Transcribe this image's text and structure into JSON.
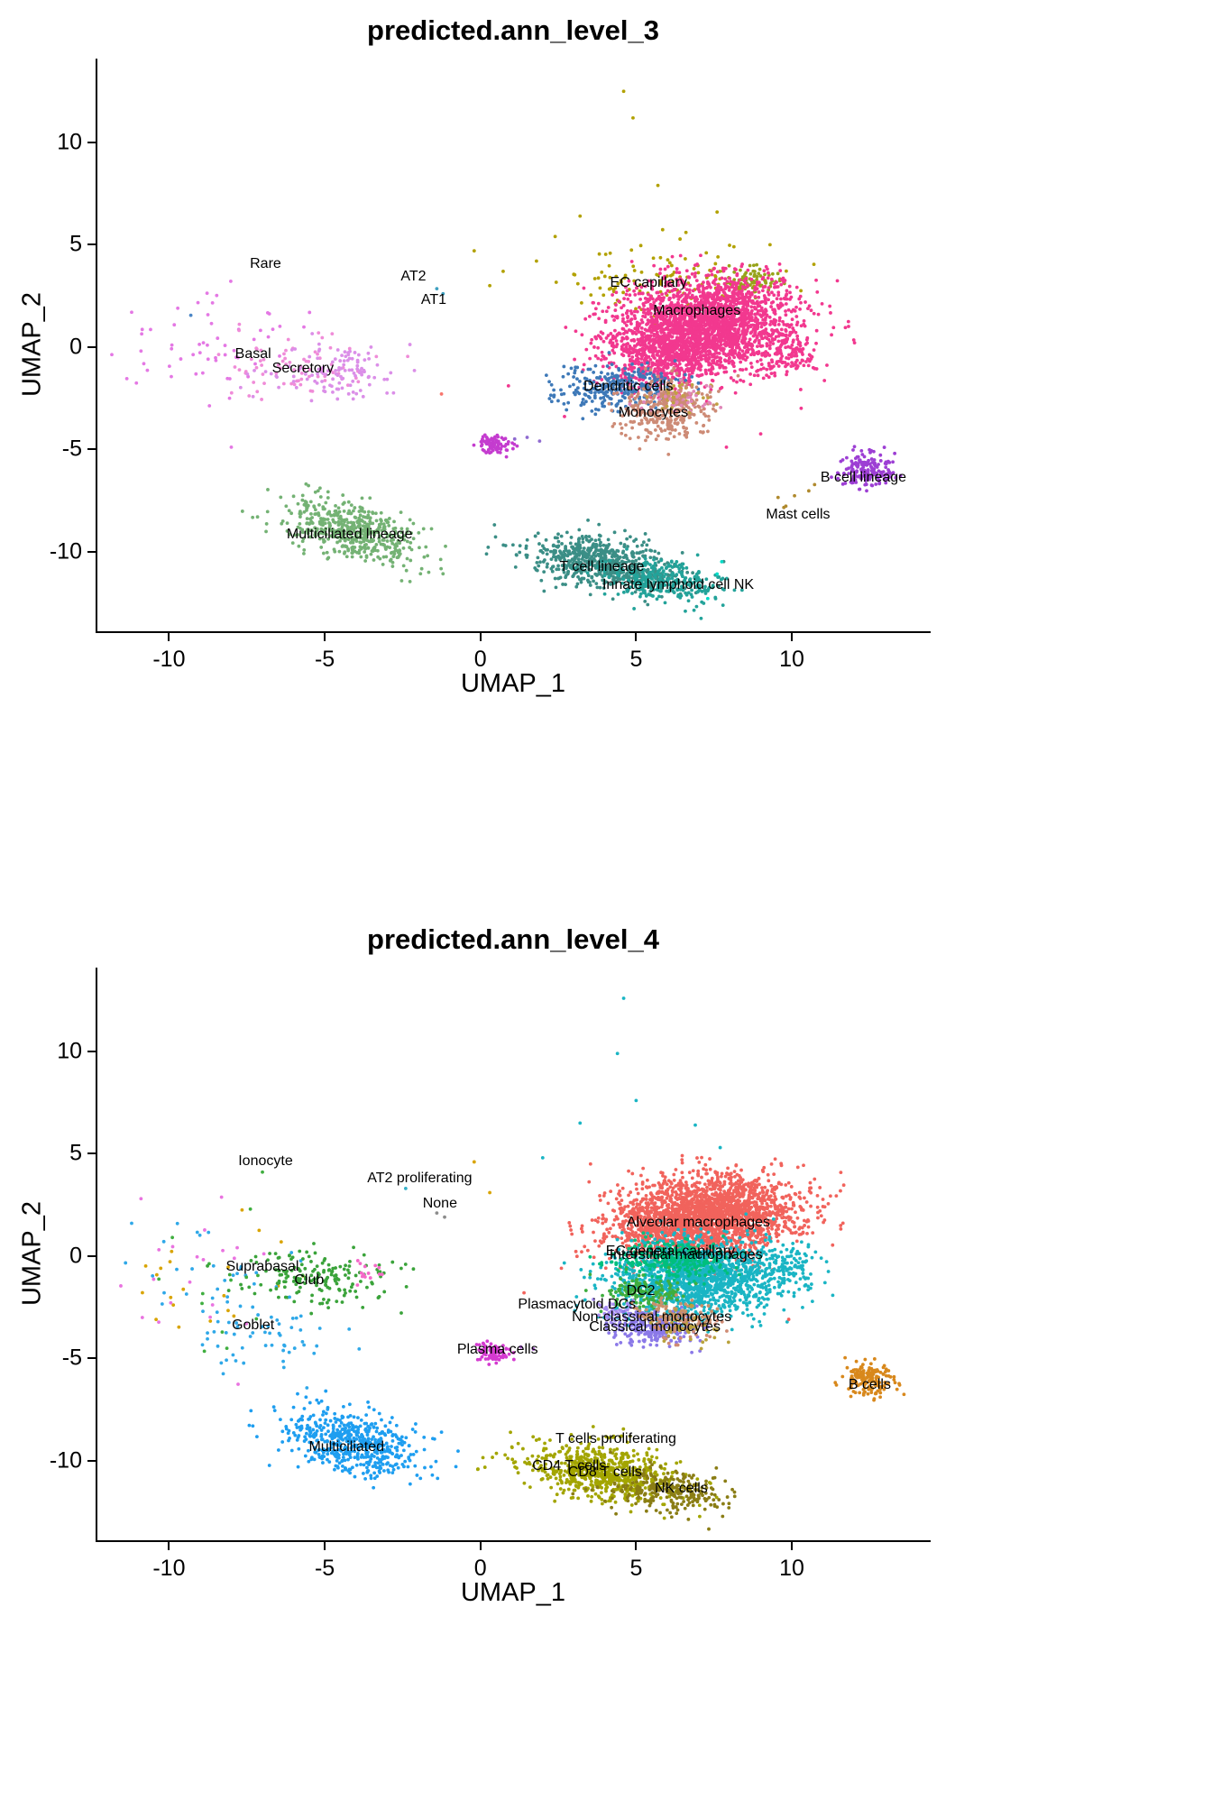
{
  "figure": {
    "background": "#ffffff",
    "text_color": "#000000",
    "axis_color": "#000000"
  },
  "chart_data": [
    {
      "type": "scatter",
      "title": "predicted.ann_level_3",
      "xlabel": "UMAP_1",
      "ylabel": "UMAP_2",
      "xlim": [
        -12.3,
        14.4
      ],
      "ylim": [
        -13.9,
        14.1
      ],
      "xticks": [
        -10,
        -5,
        0,
        5,
        10
      ],
      "yticks": [
        -10,
        -5,
        0,
        5,
        10
      ],
      "grid": false,
      "legend": "none",
      "point_radius": 1.9,
      "clusters": [
        {
          "name": "rare",
          "color": "#e478e4",
          "n": 55,
          "center": [
            -8.8,
            0.1
          ],
          "spread": [
            1.5,
            1.3
          ]
        },
        {
          "name": "rare-far-strays",
          "color": "#e478e4",
          "points": [
            [
              -11.2,
              1.7
            ],
            [
              -10.9,
              -0.2
            ],
            [
              -8.0,
              -4.9
            ]
          ]
        },
        {
          "name": "rare-blue-stray",
          "color": "#4b86c6",
          "points": [
            [
              -9.3,
              1.55
            ]
          ]
        },
        {
          "name": "basal",
          "color": "#f08cd8",
          "n": 75,
          "center": [
            -5.9,
            -0.9
          ],
          "spread": [
            1.15,
            0.75
          ]
        },
        {
          "name": "secretory",
          "color": "#db8fe8",
          "n": 115,
          "center": [
            -4.6,
            -1.15
          ],
          "spread": [
            1.0,
            0.7
          ]
        },
        {
          "name": "at1-at2",
          "color": "#3fa0c0",
          "points": [
            [
              -1.4,
              2.85
            ],
            [
              -1.2,
              2.6
            ]
          ]
        },
        {
          "name": "ec-capillary",
          "color": "#b2a100",
          "n": 120,
          "center": [
            6.0,
            3.1
          ],
          "spread": [
            1.7,
            0.85
          ]
        },
        {
          "name": "ec-capillary-dense",
          "color": "#97a31a",
          "n": 80,
          "center": [
            8.75,
            3.25
          ],
          "spread": [
            0.45,
            0.35
          ]
        },
        {
          "name": "olive-strays",
          "color": "#b2a100",
          "points": [
            [
              4.6,
              12.5
            ],
            [
              4.9,
              11.2
            ],
            [
              3.2,
              6.4
            ],
            [
              5.7,
              7.9
            ],
            [
              7.6,
              6.6
            ],
            [
              2.4,
              5.4
            ],
            [
              1.8,
              4.2
            ],
            [
              9.3,
              5.0
            ],
            [
              0.3,
              3.0
            ],
            [
              -0.2,
              4.7
            ],
            [
              6.6,
              5.6
            ]
          ]
        },
        {
          "name": "macrophages",
          "color": "#f2388f",
          "n": 2400,
          "center": [
            7.3,
            1.0
          ],
          "spread": [
            1.45,
            1.15
          ],
          "angle": 0.18
        },
        {
          "name": "macrophages-arm",
          "color": "#f2388f",
          "n": 450,
          "center": [
            5.7,
            -0.6
          ],
          "spread": [
            0.9,
            0.85
          ]
        },
        {
          "name": "macrophages-right",
          "color": "#f2388f",
          "n": 90,
          "center": [
            10.0,
            -0.4
          ],
          "spread": [
            0.45,
            0.5
          ]
        },
        {
          "name": "macrophage-strays",
          "color": "#f2388f",
          "points": [
            [
              7.9,
              -4.9
            ],
            [
              9.0,
              -4.25
            ],
            [
              2.7,
              -3.4
            ],
            [
              0.9,
              -1.9
            ],
            [
              10.3,
              -3.0
            ]
          ]
        },
        {
          "name": "dendritic-cells",
          "color": "#3e79b8",
          "n": 300,
          "center": [
            4.55,
            -1.95
          ],
          "spread": [
            0.95,
            0.55
          ],
          "angle": 0.1
        },
        {
          "name": "monocytes",
          "color": "#cd8b76",
          "n": 300,
          "center": [
            5.95,
            -3.15
          ],
          "spread": [
            0.75,
            0.72
          ]
        },
        {
          "name": "monocytes-mix",
          "colors": [
            "#c2a044",
            "#e087b8",
            "#cd8b76"
          ],
          "n": 110,
          "center": [
            6.4,
            -2.6
          ],
          "spread": [
            0.6,
            0.5
          ]
        },
        {
          "name": "plasma-clump",
          "color": "#c43ccf",
          "n": 85,
          "center": [
            0.45,
            -4.75
          ],
          "spread": [
            0.28,
            0.22
          ]
        },
        {
          "name": "plasma-trail",
          "color": "#8f6bd0",
          "points": [
            [
              1.1,
              -4.5
            ],
            [
              1.5,
              -4.42
            ],
            [
              1.9,
              -4.6
            ]
          ]
        },
        {
          "name": "b-cell-lineage",
          "color": "#9d3fd4",
          "n": 170,
          "center": [
            12.45,
            -6.05
          ],
          "spread": [
            0.38,
            0.42
          ]
        },
        {
          "name": "mast-cells",
          "color": "#b08a2e",
          "n": 6,
          "center": [
            9.9,
            -7.55
          ],
          "spread": [
            0.55,
            0.35
          ]
        },
        {
          "name": "multiciliated-lineage",
          "color": "#74b274",
          "n": 520,
          "center": [
            -4.15,
            -9.0
          ],
          "spread": [
            1.15,
            0.65
          ],
          "angle": -0.45
        },
        {
          "name": "multiciliated-strays",
          "color": "#74b274",
          "points": [
            [
              -5.6,
              -6.7
            ],
            [
              -5.15,
              -6.9
            ],
            [
              -6.0,
              -7.3
            ]
          ]
        },
        {
          "name": "t-cell-lineage",
          "color": "#3b8e86",
          "n": 680,
          "center": [
            3.95,
            -10.55
          ],
          "spread": [
            1.25,
            0.6
          ],
          "angle": -0.28
        },
        {
          "name": "ilc-nk",
          "color": "#23a39a",
          "n": 280,
          "center": [
            5.9,
            -11.45
          ],
          "spread": [
            0.95,
            0.5
          ],
          "angle": -0.2
        },
        {
          "name": "ilc-nk-bright",
          "color": "#00dcc8",
          "points": [
            [
              7.6,
              -11.1
            ],
            [
              7.75,
              -10.5
            ],
            [
              7.3,
              -12.3
            ]
          ]
        },
        {
          "name": "salmon-stray",
          "color": "#f8766d",
          "points": [
            [
              -1.25,
              -2.3
            ]
          ]
        }
      ],
      "labels": [
        {
          "text": "Rare",
          "x": -6.9,
          "y": 4.05
        },
        {
          "text": "AT2",
          "x": -2.15,
          "y": 3.45
        },
        {
          "text": "AT1",
          "x": -1.5,
          "y": 2.3
        },
        {
          "text": "EC capillary",
          "x": 5.4,
          "y": 3.1
        },
        {
          "text": "Macrophages",
          "x": 6.95,
          "y": 1.75
        },
        {
          "text": "Basal",
          "x": -7.3,
          "y": -0.35
        },
        {
          "text": "Secretory",
          "x": -5.7,
          "y": -1.05
        },
        {
          "text": "Dendritic cells",
          "x": 4.75,
          "y": -1.95
        },
        {
          "text": "Monocytes",
          "x": 5.55,
          "y": -3.25
        },
        {
          "text": "B cell lineage",
          "x": 12.3,
          "y": -6.4
        },
        {
          "text": "Mast cells",
          "x": 10.2,
          "y": -8.2
        },
        {
          "text": "Multiciliated lineage",
          "x": -4.2,
          "y": -9.2
        },
        {
          "text": "T cell lineage",
          "x": 3.9,
          "y": -10.75
        },
        {
          "text": "Innate lymphoid cell NK",
          "x": 6.35,
          "y": -11.65
        }
      ]
    },
    {
      "type": "scatter",
      "title": "predicted.ann_level_4",
      "xlabel": "UMAP_1",
      "ylabel": "UMAP_2",
      "xlim": [
        -12.3,
        14.4
      ],
      "ylim": [
        -13.9,
        14.1
      ],
      "xticks": [
        -10,
        -5,
        0,
        5,
        10
      ],
      "yticks": [
        -10,
        -5,
        0,
        5,
        10
      ],
      "grid": false,
      "legend": "none",
      "point_radius": 1.9,
      "clusters": [
        {
          "name": "left-mixed",
          "colors": [
            "#2fa8e8",
            "#e973e0",
            "#3fae3f",
            "#d9a400",
            "#2fa8e8"
          ],
          "n": 90,
          "center": [
            -8.5,
            -1.0
          ],
          "spread": [
            1.6,
            1.7
          ]
        },
        {
          "name": "left-far-strays",
          "colors": [
            "#e973e0",
            "#2fa8e8"
          ],
          "points": [
            [
              -10.9,
              2.8
            ],
            [
              -11.2,
              1.6
            ]
          ]
        },
        {
          "name": "ionocyte-dot",
          "color": "#3fae3f",
          "points": [
            [
              -7.0,
              4.1
            ]
          ]
        },
        {
          "name": "suprabasal-club",
          "color": "#3aa33a",
          "n": 170,
          "center": [
            -5.2,
            -1.1
          ],
          "spread": [
            1.15,
            0.7
          ]
        },
        {
          "name": "club-pink",
          "color": "#f469c8",
          "n": 14,
          "center": [
            -3.6,
            -0.75
          ],
          "spread": [
            0.3,
            0.25
          ]
        },
        {
          "name": "goblet",
          "color": "#2fa8e8",
          "n": 55,
          "center": [
            -6.9,
            -3.9
          ],
          "spread": [
            1.2,
            1.0
          ]
        },
        {
          "name": "none-dots",
          "color": "#8c8c8c",
          "points": [
            [
              -1.4,
              2.1
            ],
            [
              -1.15,
              1.9
            ]
          ]
        },
        {
          "name": "at2-proliferating-dot",
          "color": "#35b0c8",
          "points": [
            [
              -2.4,
              3.3
            ]
          ]
        },
        {
          "name": "plasma-cells",
          "color": "#d43ad0",
          "n": 85,
          "center": [
            0.45,
            -4.7
          ],
          "spread": [
            0.27,
            0.22
          ]
        },
        {
          "name": "plasma-trail",
          "color": "#b060d8",
          "points": [
            [
              1.3,
              -4.45
            ],
            [
              1.7,
              -4.55
            ]
          ]
        },
        {
          "name": "alveolar-macrophages",
          "color": "#f1635c",
          "n": 2300,
          "center": [
            7.35,
            1.95
          ],
          "spread": [
            1.45,
            1.0
          ],
          "angle": 0.15
        },
        {
          "name": "alveolar-left-lobe",
          "color": "#f1635c",
          "n": 220,
          "center": [
            5.6,
            1.2
          ],
          "spread": [
            0.8,
            0.7
          ]
        },
        {
          "name": "interstitial-macrophages",
          "color": "#1ab5c4",
          "n": 1500,
          "center": [
            7.0,
            -1.1
          ],
          "spread": [
            1.35,
            0.95
          ],
          "angle": 0.12
        },
        {
          "name": "ec-general-capillary",
          "color": "#00bf7d",
          "n": 280,
          "center": [
            6.2,
            -0.15
          ],
          "spread": [
            0.9,
            0.45
          ]
        },
        {
          "name": "dc2",
          "color": "#3fae3f",
          "n": 150,
          "center": [
            5.25,
            -1.8
          ],
          "spread": [
            0.6,
            0.4
          ]
        },
        {
          "name": "teal-right-clump",
          "color": "#1ab5c4",
          "n": 90,
          "center": [
            9.95,
            -0.5
          ],
          "spread": [
            0.45,
            0.5
          ]
        },
        {
          "name": "plasmacytoid-dcs",
          "color": "#a58cf0",
          "n": 45,
          "center": [
            4.35,
            -2.7
          ],
          "spread": [
            0.4,
            0.3
          ]
        },
        {
          "name": "classical-monocytes",
          "color": "#8b79e8",
          "n": 230,
          "center": [
            5.6,
            -3.55
          ],
          "spread": [
            0.7,
            0.45
          ]
        },
        {
          "name": "non-classical-monocytes",
          "color": "#c9906a",
          "n": 110,
          "center": [
            6.25,
            -2.9
          ],
          "spread": [
            0.55,
            0.4
          ]
        },
        {
          "name": "monocyte-mix",
          "colors": [
            "#b9a23c",
            "#cf8b74"
          ],
          "n": 80,
          "center": [
            6.6,
            -3.6
          ],
          "spread": [
            0.6,
            0.45
          ]
        },
        {
          "name": "b-cells",
          "color": "#d8881c",
          "n": 160,
          "center": [
            12.45,
            -6.05
          ],
          "spread": [
            0.38,
            0.42
          ]
        },
        {
          "name": "multiciliated",
          "color": "#1e9ef0",
          "n": 540,
          "center": [
            -4.15,
            -9.1
          ],
          "spread": [
            1.15,
            0.7
          ],
          "angle": -0.45
        },
        {
          "name": "multiciliated-strays",
          "color": "#1e9ef0",
          "points": [
            [
              -5.6,
              -6.9
            ],
            [
              -6.0,
              -7.4
            ],
            [
              -5.1,
              -7.1
            ]
          ]
        },
        {
          "name": "t-cells",
          "color": "#a3a500",
          "n": 700,
          "center": [
            3.9,
            -10.6
          ],
          "spread": [
            1.25,
            0.6
          ],
          "angle": -0.28
        },
        {
          "name": "t-cells-proliferating",
          "color": "#a3a500",
          "n": 6,
          "center": [
            4.4,
            -8.75
          ],
          "spread": [
            0.4,
            0.2
          ]
        },
        {
          "name": "nk-cells",
          "color": "#8a7d15",
          "n": 260,
          "center": [
            6.0,
            -11.5
          ],
          "spread": [
            0.95,
            0.5
          ],
          "angle": -0.2
        },
        {
          "name": "teal-strays",
          "color": "#1ab5c4",
          "points": [
            [
              4.6,
              12.6
            ],
            [
              6.9,
              6.4
            ],
            [
              3.2,
              6.5
            ],
            [
              2.0,
              4.8
            ],
            [
              5.0,
              7.6
            ],
            [
              7.7,
              5.3
            ],
            [
              4.4,
              9.9
            ]
          ]
        },
        {
          "name": "khaki-strays",
          "color": "#d9a400",
          "points": [
            [
              0.3,
              3.1
            ],
            [
              -0.2,
              4.6
            ]
          ]
        },
        {
          "name": "red-strays",
          "color": "#f1635c",
          "points": [
            [
              2.6,
              -0.6
            ],
            [
              1.4,
              -1.8
            ],
            [
              9.9,
              -3.1
            ]
          ]
        }
      ],
      "labels": [
        {
          "text": "Ionocyte",
          "x": -6.9,
          "y": 4.6
        },
        {
          "text": "AT2 proliferating",
          "x": -1.95,
          "y": 3.8
        },
        {
          "text": "None",
          "x": -1.3,
          "y": 2.55
        },
        {
          "text": "Alveolar macrophages",
          "x": 7.0,
          "y": 1.6
        },
        {
          "text": "EC general capillary",
          "x": 6.1,
          "y": 0.2
        },
        {
          "text": "Interstitial macrophages",
          "x": 6.6,
          "y": 0.05
        },
        {
          "text": "Suprabasal",
          "x": -7.0,
          "y": -0.55
        },
        {
          "text": "Club",
          "x": -5.5,
          "y": -1.2
        },
        {
          "text": "DC2",
          "x": 5.15,
          "y": -1.75
        },
        {
          "text": "Plasmacytoid DCs",
          "x": 3.1,
          "y": -2.4
        },
        {
          "text": "Non-classical monocytes",
          "x": 5.5,
          "y": -3.0
        },
        {
          "text": "Classical monocytes",
          "x": 5.6,
          "y": -3.5
        },
        {
          "text": "Goblet",
          "x": -7.3,
          "y": -3.4
        },
        {
          "text": "Plasma cells",
          "x": 0.55,
          "y": -4.6
        },
        {
          "text": "B cells",
          "x": 12.5,
          "y": -6.3
        },
        {
          "text": "Multiciliated",
          "x": -4.3,
          "y": -9.35
        },
        {
          "text": "T cells proliferating",
          "x": 4.35,
          "y": -8.95
        },
        {
          "text": "CD4 T cells",
          "x": 2.85,
          "y": -10.3
        },
        {
          "text": "CD8 T cells",
          "x": 4.0,
          "y": -10.6
        },
        {
          "text": "NK cells",
          "x": 6.45,
          "y": -11.4
        }
      ]
    }
  ]
}
